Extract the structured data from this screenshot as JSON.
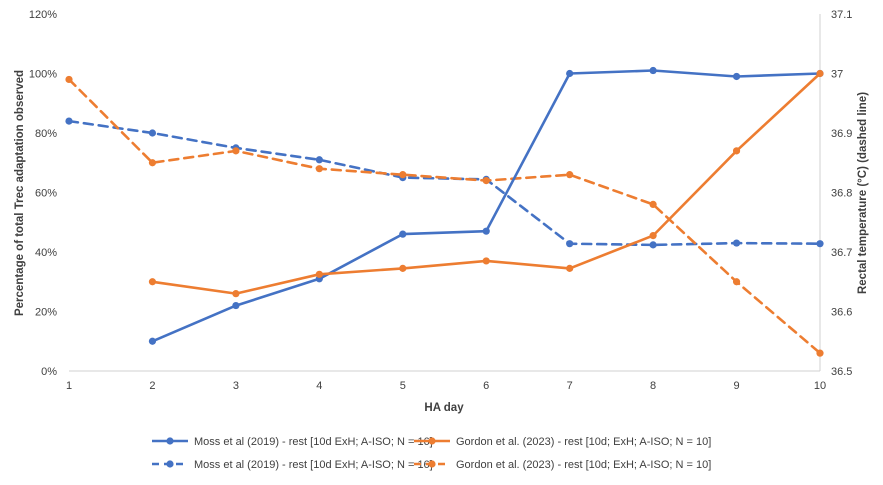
{
  "chart_data": {
    "type": "line",
    "title": "",
    "xlabel": "HA day",
    "ylabel_left": "Percentage of total Trec adaptation observed",
    "ylabel_right": "Rectal temperature (°C) (dashed line)",
    "x": [
      1,
      2,
      3,
      4,
      5,
      6,
      7,
      8,
      9,
      10
    ],
    "xlim": [
      1,
      10
    ],
    "ylim_left": [
      0,
      120
    ],
    "ylim_right": [
      36.5,
      37.1
    ],
    "yticks_left": [
      0,
      20,
      40,
      60,
      80,
      100,
      120
    ],
    "yticks_left_labels": [
      "0%",
      "20%",
      "40%",
      "60%",
      "80%",
      "100%",
      "120%"
    ],
    "yticks_right": [
      36.5,
      36.6,
      36.7,
      36.8,
      36.9,
      37.0,
      37.1
    ],
    "yticks_right_labels": [
      "36.5",
      "36.6",
      "36.7",
      "36.8",
      "36.9",
      "37",
      "37.1"
    ],
    "xticks_labels": [
      "1",
      "2",
      "3",
      "4",
      "5",
      "6",
      "7",
      "8",
      "9",
      "10"
    ],
    "grid": false,
    "legend_position": "bottom",
    "series": [
      {
        "name": "Moss et al (2019) - rest [10d ExH; A-ISO; N = 16]",
        "axis": "left",
        "style": "solid",
        "color": "#4472C4",
        "x": [
          2,
          3,
          4,
          5,
          6,
          7,
          8,
          9,
          10
        ],
        "values": [
          10,
          22,
          31,
          46,
          47,
          100,
          101,
          99,
          100
        ]
      },
      {
        "name": "Gordon et al. (2023) - rest [10d; ExH; A-ISO; N = 10]",
        "axis": "left",
        "style": "solid",
        "color": "#ED7D31",
        "x": [
          2,
          3,
          4,
          5,
          6,
          7,
          8,
          9,
          10
        ],
        "values": [
          30,
          26,
          32.5,
          34.5,
          37,
          34.5,
          45.5,
          74,
          100
        ]
      },
      {
        "name": "Moss et al (2019) - rest [10d ExH; A-ISO; N = 16]",
        "axis": "right",
        "style": "dashed",
        "color": "#4472C4",
        "x": [
          1,
          2,
          3,
          4,
          5,
          6,
          7,
          8,
          9,
          10
        ],
        "values": [
          36.92,
          36.9,
          36.875,
          36.855,
          36.825,
          36.822,
          36.714,
          36.712,
          36.715,
          36.714
        ]
      },
      {
        "name": "Gordon et al. (2023) - rest [10d; ExH; A-ISO; N = 10]",
        "axis": "right",
        "style": "dashed",
        "color": "#ED7D31",
        "x": [
          1,
          2,
          3,
          4,
          5,
          6,
          7,
          8,
          9,
          10
        ],
        "values": [
          36.99,
          36.85,
          36.87,
          36.84,
          36.83,
          36.82,
          36.83,
          36.78,
          36.65,
          36.53
        ]
      }
    ]
  }
}
